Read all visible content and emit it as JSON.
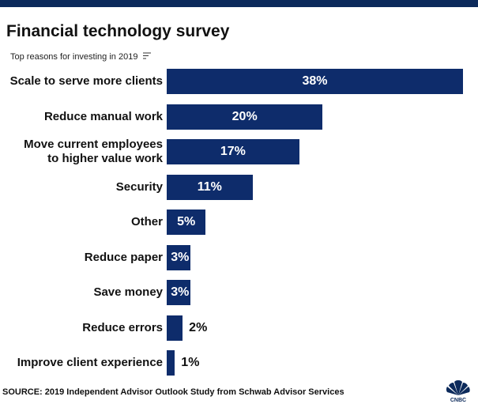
{
  "chart_data": {
    "type": "bar",
    "orientation": "horizontal",
    "title": "Financial technology survey",
    "subtitle": "Top reasons for investing in 2019",
    "categories": [
      "Scale to serve more clients",
      "Reduce manual work",
      "Move current employees\nto higher value work",
      "Security",
      "Other",
      "Reduce paper",
      "Save money",
      "Reduce errors",
      "Improve client experience"
    ],
    "values": [
      38,
      20,
      17,
      11,
      5,
      3,
      3,
      2,
      1
    ],
    "value_labels": [
      "38%",
      "20%",
      "17%",
      "11%",
      "5%",
      "3%",
      "3%",
      "2%",
      "1%"
    ],
    "color": "#0e2c6b",
    "xlim": [
      0,
      38
    ],
    "source": "SOURCE: 2019 Independent Advisor Outlook Study from Schwab Advisor Services",
    "logo": "CNBC"
  }
}
